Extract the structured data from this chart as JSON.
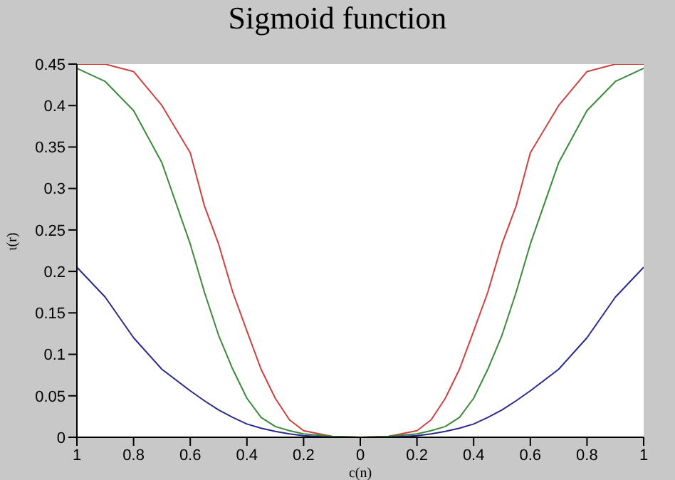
{
  "chart_data": {
    "type": "line",
    "title": "Sigmoid function",
    "xlabel": "c(n)",
    "ylabel": "ι(r)",
    "x": [
      -1,
      -0.9,
      -0.8,
      -0.7,
      -0.6,
      -0.55,
      -0.5,
      -0.45,
      -0.4,
      -0.35,
      -0.3,
      -0.25,
      -0.2,
      -0.1,
      0,
      0.1,
      0.2,
      0.25,
      0.3,
      0.35,
      0.4,
      0.45,
      0.5,
      0.55,
      0.6,
      0.7,
      0.8,
      0.9,
      1
    ],
    "series": [
      {
        "color": "#d04040",
        "values": [
          0.45,
          0.45,
          0.441,
          0.4,
          0.343,
          0.279,
          0.233,
          0.175,
          0.128,
          0.082,
          0.047,
          0.021,
          0.008,
          0.001,
          0,
          0.001,
          0.008,
          0.021,
          0.047,
          0.082,
          0.128,
          0.175,
          0.233,
          0.279,
          0.343,
          0.4,
          0.441,
          0.45,
          0.45
        ]
      },
      {
        "color": "#3a8a3a",
        "values": [
          0.445,
          0.429,
          0.394,
          0.331,
          0.233,
          0.175,
          0.123,
          0.082,
          0.047,
          0.024,
          0.013,
          0.008,
          0.004,
          0.001,
          0,
          0.001,
          0.004,
          0.008,
          0.013,
          0.024,
          0.047,
          0.082,
          0.123,
          0.175,
          0.233,
          0.331,
          0.394,
          0.429,
          0.445
        ]
      },
      {
        "color": "#2a2a8a",
        "values": [
          0.205,
          0.169,
          0.12,
          0.082,
          0.056,
          0.044,
          0.033,
          0.024,
          0.016,
          0.011,
          0.007,
          0.004,
          0.002,
          0,
          0,
          0,
          0.002,
          0.004,
          0.007,
          0.011,
          0.016,
          0.024,
          0.033,
          0.044,
          0.056,
          0.082,
          0.12,
          0.169,
          0.205
        ]
      }
    ],
    "xlim": [
      -1,
      1
    ],
    "xticks": [
      {
        "value": -1,
        "label": "1"
      },
      {
        "value": -0.8,
        "label": "0.8"
      },
      {
        "value": -0.6,
        "label": "0.6"
      },
      {
        "value": -0.4,
        "label": "0.4"
      },
      {
        "value": -0.2,
        "label": "0.2"
      },
      0,
      0.2,
      0.4,
      0.6,
      0.8,
      1
    ],
    "ylim": [
      0,
      0.45
    ],
    "yticks": [
      0,
      0.05,
      0.1,
      0.15,
      0.2,
      0.25,
      0.3,
      0.35,
      0.4,
      0.45
    ],
    "marker": "none",
    "line_style": "solid"
  }
}
